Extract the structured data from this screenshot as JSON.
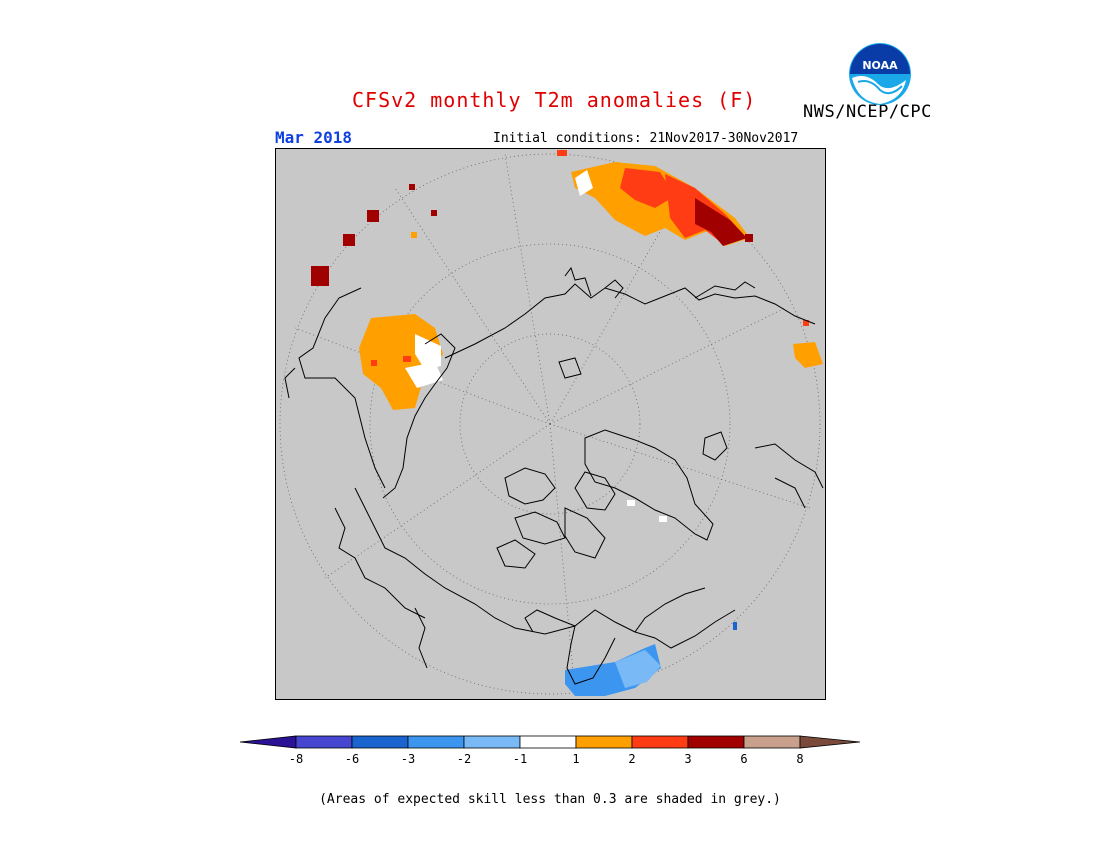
{
  "header": {
    "title": "CFSv2 monthly T2m anomalies (F)",
    "month": "Mar 2018",
    "initial_conditions": "Initial conditions: 21Nov2017-30Nov2017",
    "agency": "NWS/NCEP/CPC",
    "logo_text": "NOAA"
  },
  "colors": {
    "title": "#e00000",
    "month": "#1040e0",
    "ocean_grey": "#c8c8c8",
    "legend": [
      "#2a1196",
      "#4646d0",
      "#1a64d0",
      "#3c96f0",
      "#78b9f6",
      "#ffffff",
      "#ffa000",
      "#ff3c14",
      "#a00000",
      "#c8a08c",
      "#7a4a3a"
    ]
  },
  "legend": {
    "tick_labels": [
      "-8",
      "-6",
      "-3",
      "-2",
      "-1",
      "1",
      "2",
      "3",
      "6",
      "8"
    ]
  },
  "footnote": "(Areas of expected skill less than 0.3 are shaded in grey.)"
}
